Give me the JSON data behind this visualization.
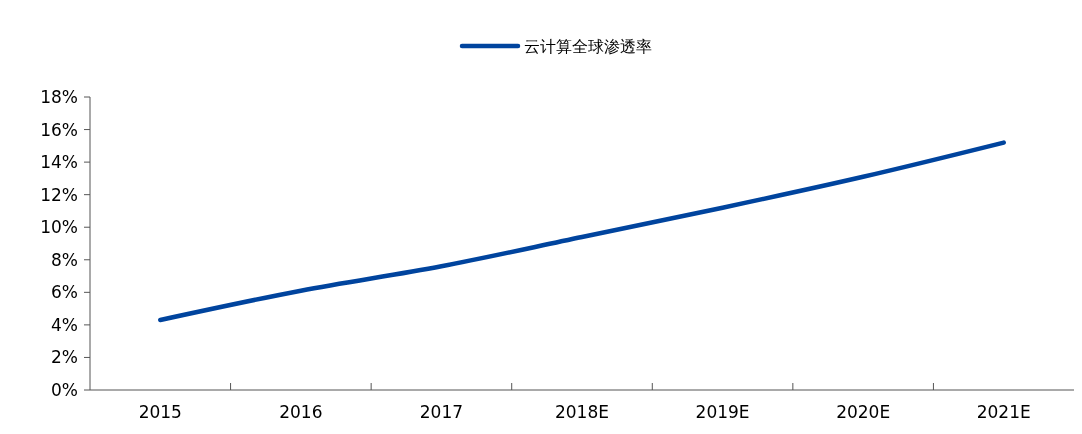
{
  "chart_data": {
    "type": "line",
    "categories": [
      "2015",
      "2016",
      "2017",
      "2018E",
      "2019E",
      "2020E",
      "2021E"
    ],
    "series": [
      {
        "name": "云计算全球渗透率",
        "color": "#00449e",
        "values": [
          4.3,
          6.1,
          7.6,
          9.4,
          11.2,
          13.1,
          15.2
        ]
      }
    ],
    "ylim": [
      0,
      18
    ],
    "yticks": [
      {
        "value": 0,
        "label": "0%"
      },
      {
        "value": 2,
        "label": "2%"
      },
      {
        "value": 4,
        "label": "4%"
      },
      {
        "value": 6,
        "label": "6%"
      },
      {
        "value": 8,
        "label": "8%"
      },
      {
        "value": 10,
        "label": "10%"
      },
      {
        "value": 12,
        "label": "12%"
      },
      {
        "value": 14,
        "label": "14%"
      },
      {
        "value": 16,
        "label": "16%"
      },
      {
        "value": 18,
        "label": "18%"
      }
    ],
    "legend": "top",
    "grid": false,
    "marker": "none",
    "line_style": "solid"
  }
}
